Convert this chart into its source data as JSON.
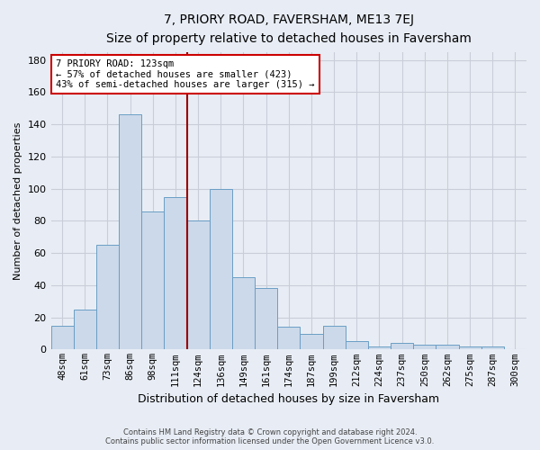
{
  "title": "7, PRIORY ROAD, FAVERSHAM, ME13 7EJ",
  "subtitle": "Size of property relative to detached houses in Faversham",
  "xlabel": "Distribution of detached houses by size in Faversham",
  "ylabel": "Number of detached properties",
  "bar_labels": [
    "48sqm",
    "61sqm",
    "73sqm",
    "86sqm",
    "98sqm",
    "111sqm",
    "124sqm",
    "136sqm",
    "149sqm",
    "161sqm",
    "174sqm",
    "187sqm",
    "199sqm",
    "212sqm",
    "224sqm",
    "237sqm",
    "250sqm",
    "262sqm",
    "275sqm",
    "287sqm",
    "300sqm"
  ],
  "bar_values": [
    15,
    25,
    65,
    146,
    86,
    95,
    80,
    100,
    45,
    38,
    14,
    10,
    15,
    5,
    2,
    4,
    3,
    3,
    2,
    2,
    0
  ],
  "bar_color": "#ccd9ea",
  "bar_edge_color": "#6a9ec5",
  "ylim": [
    0,
    185
  ],
  "yticks": [
    0,
    20,
    40,
    60,
    80,
    100,
    120,
    140,
    160,
    180
  ],
  "grid_color": "#c8cdd8",
  "background_color": "#e8edf5",
  "property_label": "7 PRIORY ROAD: 123sqm",
  "annotation_line1": "← 57% of detached houses are smaller (423)",
  "annotation_line2": "43% of semi-detached houses are larger (315) →",
  "red_line_x": 6.0,
  "annotation_box_color": "#ffffff",
  "annotation_box_edge": "#cc0000",
  "footer1": "Contains HM Land Registry data © Crown copyright and database right 2024.",
  "footer2": "Contains public sector information licensed under the Open Government Licence v3.0."
}
